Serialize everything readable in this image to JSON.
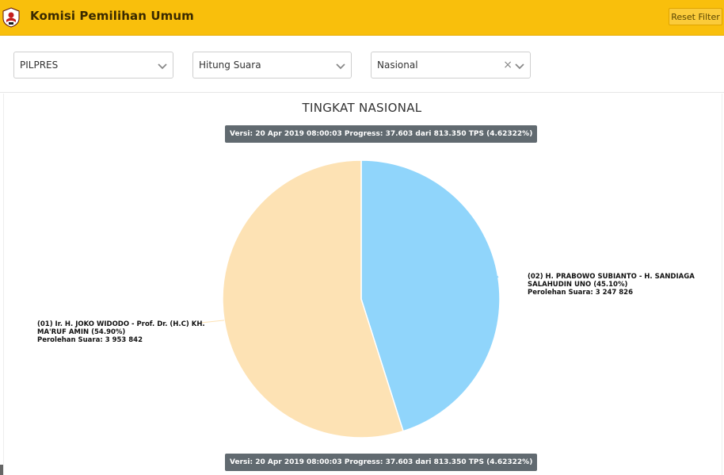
{
  "header": {
    "app_title": "Komisi Pemilihan Umum",
    "reset_label": "Reset Filter",
    "accent_color": "#f9bf0c"
  },
  "filters": {
    "election": {
      "value": "PILPRES"
    },
    "count_type": {
      "value": "Hitung Suara"
    },
    "region": {
      "value": "Nasional",
      "clear_glyph": "×"
    }
  },
  "main": {
    "title": "TINGKAT NASIONAL",
    "version_text": "Versi: 20 Apr 2019 08:00:03 Progress: 37.603 dari 813.350 TPS (4.62322%)"
  },
  "chart_data": {
    "type": "pie",
    "title": "TINGKAT NASIONAL",
    "slices": [
      {
        "label_line1": "(02) H. PRABOWO SUBIANTO - H. SANDIAGA",
        "label_line2": "SALAHUDIN UNO (45.10%)",
        "votes_text": "Perolehan Suara: 3 247 826",
        "value": 3247826,
        "percent": 45.1,
        "color": "#90d5fb"
      },
      {
        "label_line1": "(01) Ir. H. JOKO WIDODO - Prof. Dr. (H.C) KH.",
        "label_line2": "MA'RUF AMIN (54.90%)",
        "votes_text": "Perolehan Suara: 3 953 842",
        "value": 3953842,
        "percent": 54.9,
        "color": "#fde2b4"
      }
    ]
  }
}
